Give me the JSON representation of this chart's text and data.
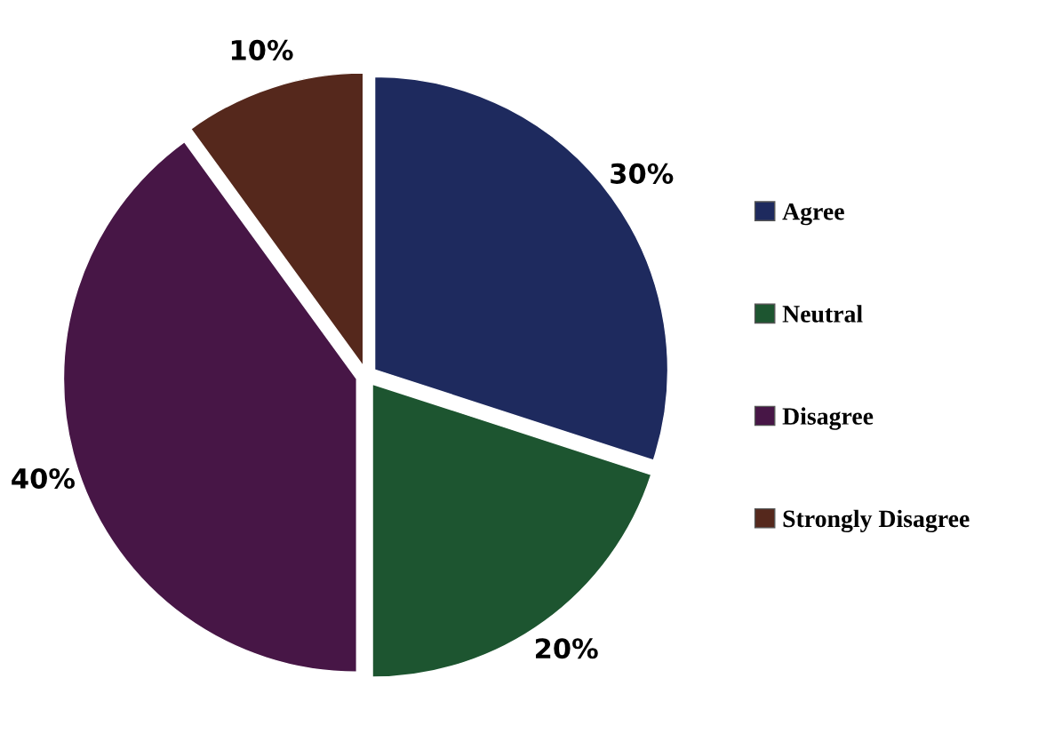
{
  "chart_data": {
    "type": "pie",
    "categories": [
      "Agree",
      "Neutral",
      "Disagree",
      "Strongly Disagree"
    ],
    "values": [
      30,
      20,
      40,
      10
    ],
    "colors": [
      "#1e2a5e",
      "#1d5530",
      "#471646",
      "#55281c"
    ],
    "value_labels": [
      "30%",
      "20%",
      "40%",
      "10%"
    ],
    "legend": "right"
  }
}
